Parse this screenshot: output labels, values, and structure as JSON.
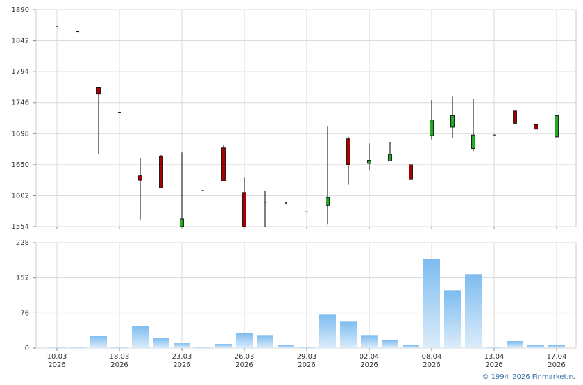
{
  "chart_data": [
    {
      "type": "candlestick",
      "open": [
        1864,
        1856,
        1770,
        1731,
        1633,
        1663,
        1554,
        1610,
        1676,
        1607,
        1592,
        1591,
        1578,
        1587,
        1690,
        1652,
        1656,
        1650,
        1695,
        1708,
        1675,
        1696,
        1733,
        1712,
        1693
      ],
      "high": [
        1864,
        1856,
        1770,
        1731,
        1660,
        1665,
        1669,
        1610,
        1680,
        1630,
        1609,
        1591,
        1578,
        1709,
        1693,
        1683,
        1685,
        1650,
        1750,
        1756,
        1752,
        1696,
        1733,
        1712,
        1726
      ],
      "low": [
        1864,
        1856,
        1666,
        1731,
        1565,
        1614,
        1554,
        1610,
        1625,
        1554,
        1554,
        1588,
        1578,
        1557,
        1619,
        1641,
        1656,
        1627,
        1689,
        1691,
        1670,
        1696,
        1714,
        1705,
        1693
      ],
      "close": [
        1864,
        1856,
        1760,
        1731,
        1626,
        1614,
        1566,
        1610,
        1625,
        1554,
        1592,
        1591,
        1578,
        1599,
        1650,
        1657,
        1666,
        1627,
        1719,
        1726,
        1696,
        1696,
        1714,
        1705,
        1726
      ],
      "up_color": "#22aa22",
      "down_color": "#aa0000",
      "ylim": [
        1554,
        1890
      ],
      "yticks": [
        1554,
        1602,
        1650,
        1698,
        1746,
        1794,
        1842,
        1890
      ],
      "grid": true
    },
    {
      "type": "bar",
      "categories": [
        "10.03",
        null,
        null,
        "18.03",
        null,
        null,
        "23.03",
        null,
        null,
        "26.03",
        null,
        null,
        "29.03",
        null,
        null,
        "02.04",
        null,
        null,
        "08.04",
        null,
        null,
        "13.04",
        null,
        null,
        "17.04"
      ],
      "category_years": [
        "2026",
        null,
        null,
        "2026",
        null,
        null,
        "2026",
        null,
        null,
        "2026",
        null,
        null,
        "2026",
        null,
        null,
        "2026",
        null,
        null,
        "2026",
        null,
        null,
        "2026",
        null,
        null,
        "2026"
      ],
      "values": [
        3,
        3,
        27,
        3,
        48,
        22,
        12,
        3,
        9,
        33,
        28,
        6,
        3,
        73,
        58,
        28,
        18,
        6,
        193,
        124,
        160,
        3,
        15,
        6,
        6
      ],
      "color": "#8cc3ef",
      "ylim": [
        0,
        228
      ],
      "yticks": [
        0,
        76,
        152,
        228
      ],
      "grid": true
    }
  ],
  "footer": "© 1994–2026 Finmarket.ru"
}
